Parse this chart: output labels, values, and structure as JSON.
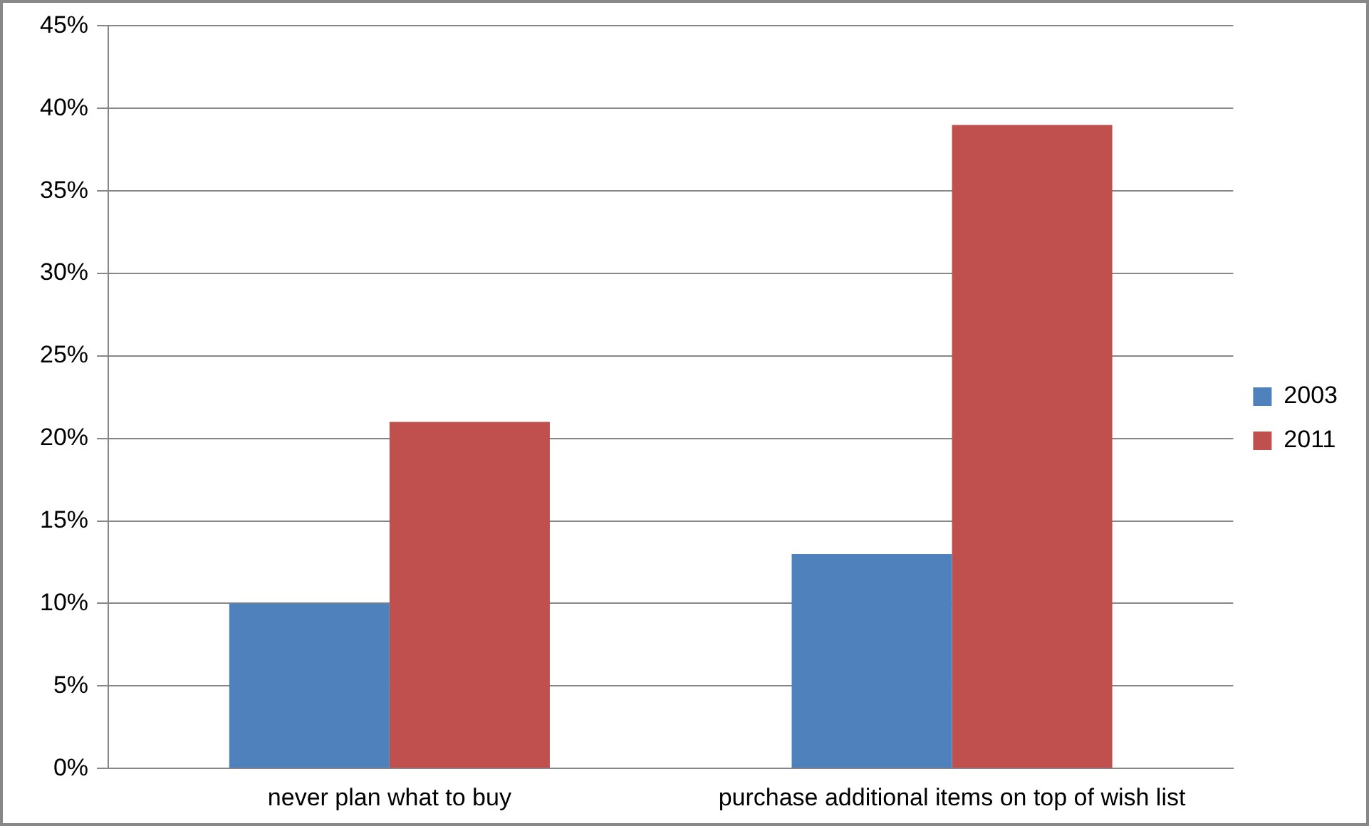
{
  "chart_data": {
    "type": "bar",
    "categories": [
      "never plan what to buy",
      "purchase additional items on top of wish list"
    ],
    "series": [
      {
        "name": "2003",
        "color": "#4f81bd",
        "values": [
          10,
          13
        ]
      },
      {
        "name": "2011",
        "color": "#c0504d",
        "values": [
          21,
          39
        ]
      }
    ],
    "ylim": [
      0,
      45
    ],
    "yticks": [
      {
        "value": 0,
        "label": "0%"
      },
      {
        "value": 5,
        "label": "5%"
      },
      {
        "value": 10,
        "label": "10%"
      },
      {
        "value": 15,
        "label": "15%"
      },
      {
        "value": 20,
        "label": "20%"
      },
      {
        "value": 25,
        "label": "25%"
      },
      {
        "value": 30,
        "label": "30%"
      },
      {
        "value": 35,
        "label": "35%"
      },
      {
        "value": 40,
        "label": "40%"
      },
      {
        "value": 45,
        "label": "45%"
      }
    ],
    "grid": "y",
    "legend": "right"
  }
}
